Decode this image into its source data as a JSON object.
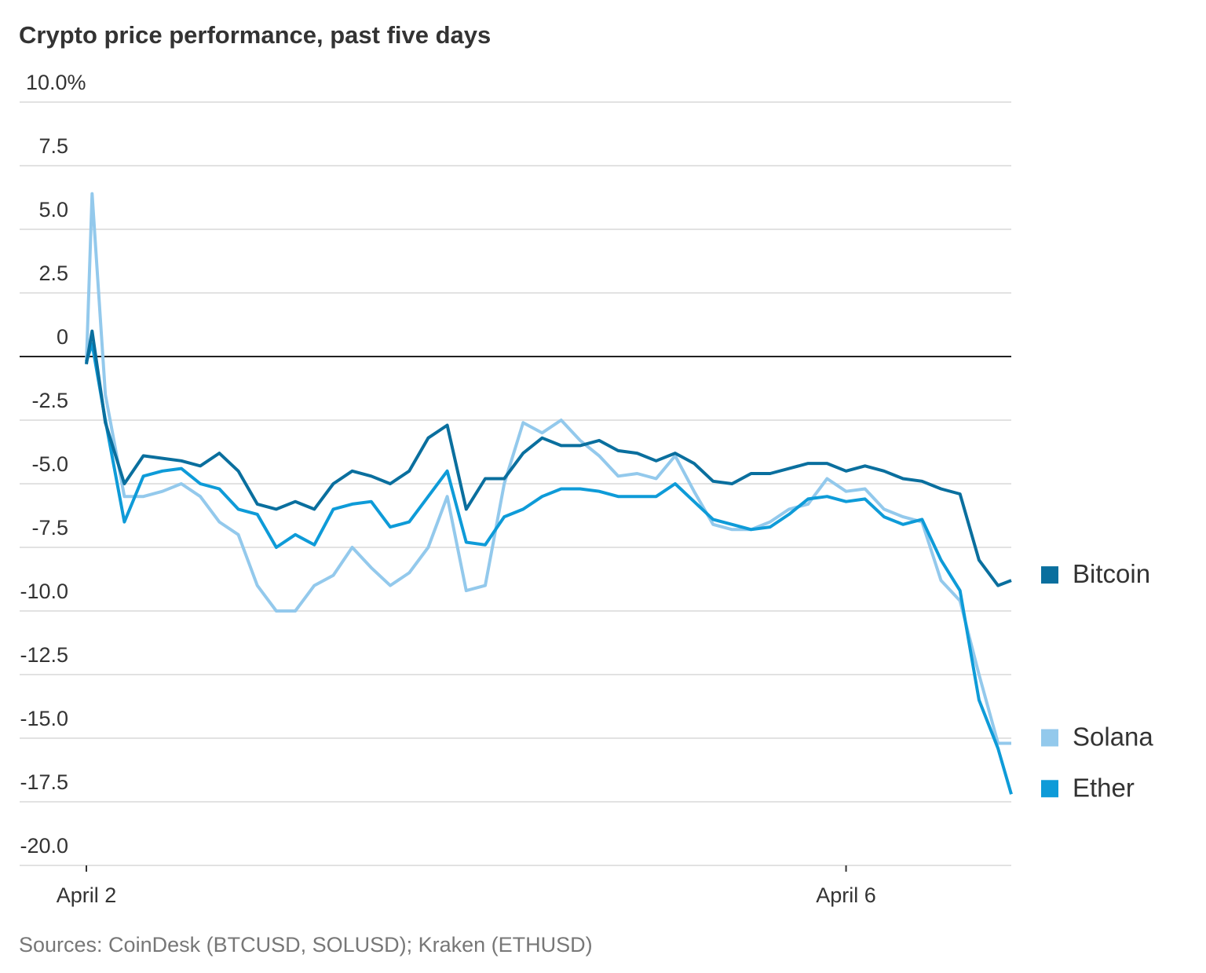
{
  "chart_data": {
    "type": "line",
    "title": "Crypto price performance, past five days",
    "source": "Sources: CoinDesk (BTCUSD, SOLUSD); Kraken (ETHUSD)",
    "x": [
      0,
      0.03,
      0.1,
      0.2,
      0.3,
      0.4,
      0.5,
      0.6,
      0.7,
      0.8,
      0.9,
      1.0,
      1.1,
      1.2,
      1.3,
      1.4,
      1.5,
      1.6,
      1.7,
      1.8,
      1.9,
      2.0,
      2.1,
      2.2,
      2.3,
      2.4,
      2.5,
      2.6,
      2.7,
      2.8,
      2.9,
      3.0,
      3.1,
      3.2,
      3.3,
      3.4,
      3.5,
      3.6,
      3.7,
      3.8,
      3.9,
      4.0,
      4.1,
      4.2,
      4.3,
      4.4,
      4.5,
      4.6,
      4.7,
      4.8,
      4.87
    ],
    "xlim": [
      0,
      4.87
    ],
    "xticks": [
      {
        "value": 0,
        "label": "April 2"
      },
      {
        "value": 4,
        "label": "April 6"
      }
    ],
    "ylim": [
      -20,
      10
    ],
    "yticks": [
      {
        "value": 10,
        "label": "10.0%"
      },
      7.5,
      {
        "value": 5,
        "label": "5.0"
      },
      2.5,
      0,
      -2.5,
      {
        "value": -5,
        "label": "-5.0"
      },
      -7.5,
      {
        "value": -10,
        "label": "-10.0"
      },
      -12.5,
      {
        "value": -15,
        "label": "-15.0"
      },
      -17.5,
      {
        "value": -20,
        "label": "-20.0"
      }
    ],
    "grid": true,
    "legend": "right",
    "series": [
      {
        "name": "Bitcoin",
        "color": "#0a6f9e",
        "values": [
          -0.3,
          1.0,
          -2.6,
          -5.0,
          -3.9,
          -4.0,
          -4.1,
          -4.3,
          -3.8,
          -4.5,
          -5.8,
          -6.0,
          -5.7,
          -6.0,
          -5.0,
          -4.5,
          -4.7,
          -5.0,
          -4.5,
          -3.2,
          -2.7,
          -6.0,
          -4.8,
          -4.8,
          -3.8,
          -3.2,
          -3.5,
          -3.5,
          -3.3,
          -3.7,
          -3.8,
          -4.1,
          -3.8,
          -4.2,
          -4.9,
          -5.0,
          -4.6,
          -4.6,
          -4.4,
          -4.2,
          -4.2,
          -4.5,
          -4.3,
          -4.5,
          -4.8,
          -4.9,
          -5.2,
          -5.4,
          -8.0,
          -9.0,
          -8.8
        ]
      },
      {
        "name": "Solana",
        "color": "#93c9ec",
        "values": [
          -0.3,
          6.4,
          -1.5,
          -5.5,
          -5.5,
          -5.3,
          -5.0,
          -5.5,
          -6.5,
          -7.0,
          -9.0,
          -10.0,
          -10.0,
          -9.0,
          -8.6,
          -7.5,
          -8.3,
          -9.0,
          -8.5,
          -7.5,
          -5.5,
          -9.2,
          -9.0,
          -5.0,
          -2.6,
          -3.0,
          -2.5,
          -3.3,
          -3.9,
          -4.7,
          -4.6,
          -4.8,
          -3.9,
          -5.3,
          -6.6,
          -6.8,
          -6.8,
          -6.5,
          -6.0,
          -5.8,
          -4.8,
          -5.3,
          -5.2,
          -6.0,
          -6.3,
          -6.5,
          -8.8,
          -9.6,
          -12.5,
          -15.2,
          -15.2
        ]
      },
      {
        "name": "Ether",
        "color": "#0e9bd8",
        "values": [
          -0.2,
          0.5,
          -2.5,
          -6.5,
          -4.7,
          -4.5,
          -4.4,
          -5.0,
          -5.2,
          -6.0,
          -6.2,
          -7.5,
          -7.0,
          -7.4,
          -6.0,
          -5.8,
          -5.7,
          -6.7,
          -6.5,
          -5.5,
          -4.5,
          -7.3,
          -7.4,
          -6.3,
          -6.0,
          -5.5,
          -5.2,
          -5.2,
          -5.3,
          -5.5,
          -5.5,
          -5.5,
          -5.0,
          -5.7,
          -6.4,
          -6.6,
          -6.8,
          -6.7,
          -6.2,
          -5.6,
          -5.5,
          -5.7,
          -5.6,
          -6.3,
          -6.6,
          -6.4,
          -8.0,
          -9.2,
          -13.5,
          -15.4,
          -17.2
        ]
      }
    ]
  }
}
